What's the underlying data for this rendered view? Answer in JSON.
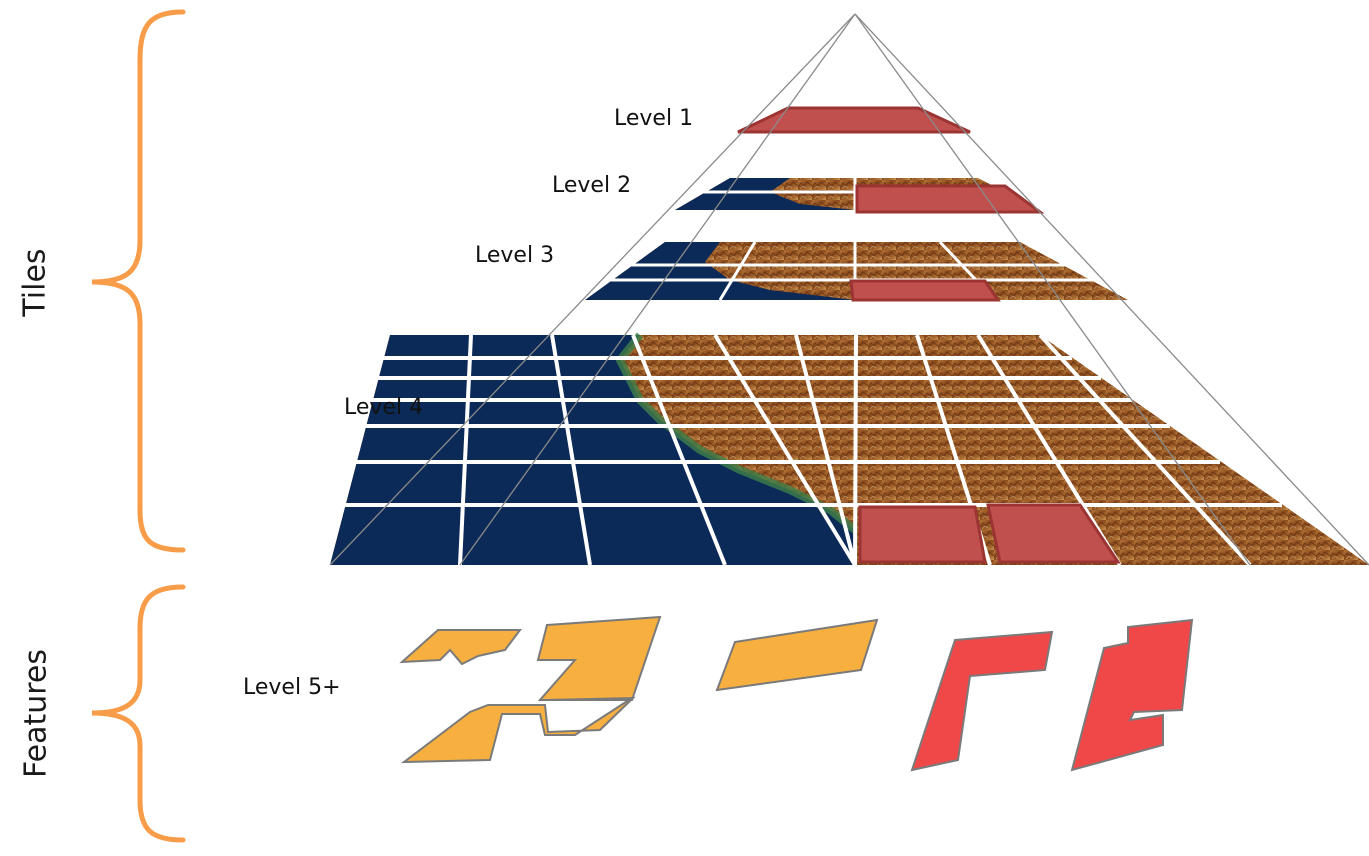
{
  "sections": {
    "tiles_label": "Tiles",
    "features_label": "Features"
  },
  "levels": {
    "level1": "Level 1",
    "level2": "Level 2",
    "level3": "Level 3",
    "level4": "Level 4",
    "level5": "Level 5+"
  },
  "colors": {
    "brace": "#f79d4a",
    "ocean": "#0c2a58",
    "land_dark": "#7a3d16",
    "land_mid": "#a8652a",
    "land_light": "#c89a5a",
    "coast_green": "#3f7f4a",
    "selected_tile": "#c0504d",
    "selected_tile_stroke": "#9b3432",
    "feature_orange": "#f7b03f",
    "feature_red": "#f04848",
    "feature_stroke": "#7a7a7a",
    "grid_line": "#ffffff",
    "pyramid_edge": "#8a8a8a"
  },
  "icons": [
    "left-curly-brace-icon"
  ]
}
